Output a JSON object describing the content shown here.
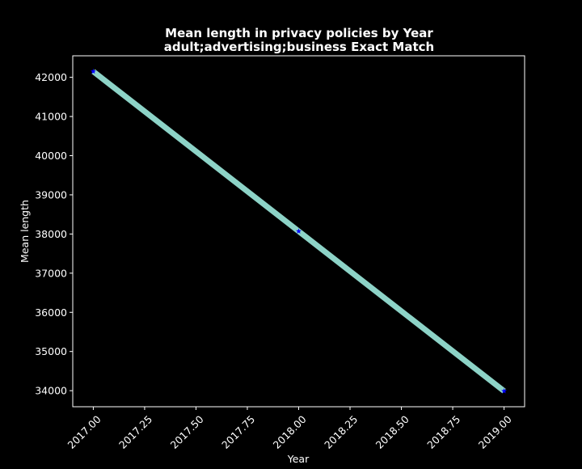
{
  "chart_data": {
    "type": "line",
    "title": "Mean length in privacy policies by Year",
    "subtitle": "adult;advertising;business Exact Match",
    "xlabel": "Year",
    "ylabel": "Mean length",
    "x": [
      2017,
      2018,
      2019
    ],
    "series": [
      {
        "values": [
          42150,
          38070,
          33990
        ]
      }
    ],
    "xlim": [
      2016.9,
      2019.1
    ],
    "ylim": [
      33590,
      42550
    ],
    "xticks": [
      2017.0,
      2017.25,
      2017.5,
      2017.75,
      2018.0,
      2018.25,
      2018.5,
      2018.75,
      2019.0
    ],
    "xtick_labels": [
      "2017.00",
      "2017.25",
      "2017.50",
      "2017.75",
      "2018.00",
      "2018.25",
      "2018.50",
      "2018.75",
      "2019.00"
    ],
    "yticks": [
      34000,
      35000,
      36000,
      37000,
      38000,
      39000,
      40000,
      41000,
      42000
    ],
    "ytick_labels": [
      "34000",
      "35000",
      "36000",
      "37000",
      "38000",
      "39000",
      "40000",
      "41000",
      "42000"
    ],
    "grid": false,
    "legend": "none",
    "colors": {
      "background": "#000000",
      "line": "#8dd3c7",
      "marker": "#0000ff",
      "axes": "#ffffff",
      "text": "#ffffff"
    }
  }
}
